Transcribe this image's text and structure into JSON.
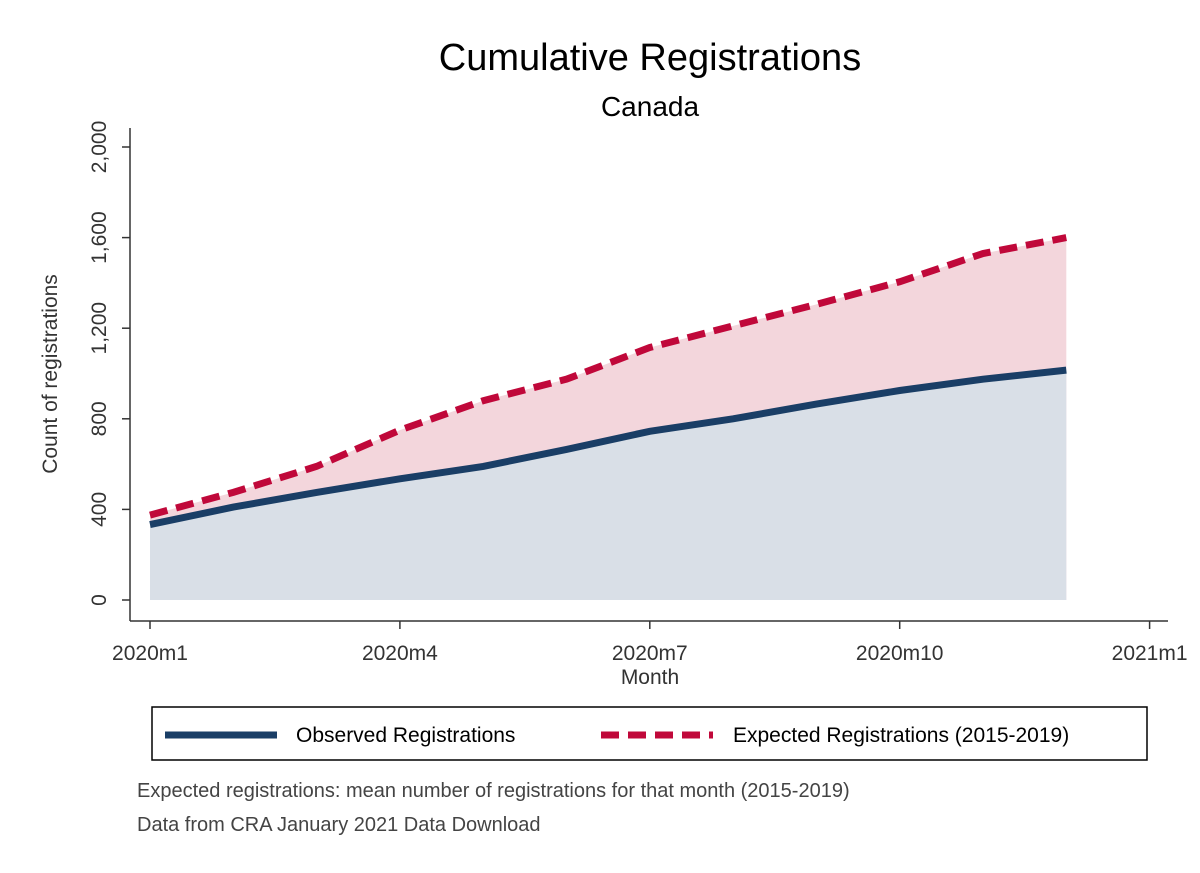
{
  "chart_data": {
    "type": "area",
    "title": "Cumulative Registrations",
    "subtitle": "Canada",
    "xlabel": "Month",
    "ylabel": "Count of registrations",
    "x_ticks": [
      "2020m1",
      "2020m4",
      "2020m7",
      "2020m10",
      "2021m1"
    ],
    "y_ticks": [
      "0",
      "400",
      "800",
      "1,200",
      "1,600",
      "2,000"
    ],
    "ylim": [
      0,
      2000
    ],
    "x_months": [
      "2020m1",
      "2020m2",
      "2020m3",
      "2020m4",
      "2020m5",
      "2020m6",
      "2020m7",
      "2020m8",
      "2020m9",
      "2020m10",
      "2020m11",
      "2020m12"
    ],
    "series": [
      {
        "name": "Observed Registrations",
        "color": "#1a3e66",
        "fill": "#d9dfe7",
        "style": "solid",
        "values": [
          333,
          410,
          475,
          535,
          590,
          665,
          745,
          800,
          865,
          925,
          975,
          1015
        ]
      },
      {
        "name": "Expected Registrations (2015-2019)",
        "color": "#c0083a",
        "fill": "#f3d6dc",
        "style": "dashed",
        "values": [
          375,
          475,
          590,
          750,
          880,
          975,
          1115,
          1210,
          1305,
          1405,
          1530,
          1600
        ]
      }
    ],
    "legend": {
      "observed_label": "Observed Registrations",
      "expected_label": "Expected Registrations (2015-2019)"
    },
    "notes": [
      "Expected registrations: mean number of registrations for that month (2015-2019)",
      "Data from CRA January 2021 Data Download"
    ]
  }
}
